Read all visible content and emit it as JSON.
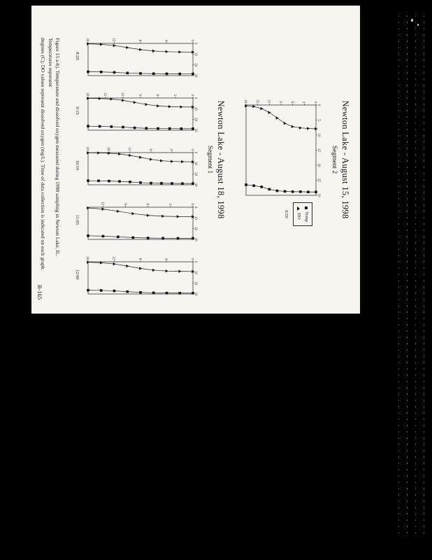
{
  "background": {
    "color": "#000000",
    "artifact_color": "#d8d8d8"
  },
  "page": {
    "sections": [
      {
        "title": "Newton Lake - August 15, 1998",
        "segment": "Segment 2"
      },
      {
        "title": "Newton Lake - August 18, 1998",
        "segment": "Segment 1"
      }
    ],
    "caption_lines": [
      "Figure 15 a-b).  Temperature and dissolved oxygen measured during 1998 sampling in Newton Lake, IL.  Temperatures represent",
      "degrees (C); DO values represent dissolved oxygen (mg/L).  Time of data collection is indicated on each graph."
    ],
    "page_number": "B-165"
  },
  "chart_data": [
    {
      "type": "scatter",
      "orientation": "depth-profile-vertical",
      "time": "6:50",
      "legend": [
        "Temp",
        "DO"
      ],
      "legend_position": "right",
      "value_range": [
        0,
        30
      ],
      "depth_range": [
        0,
        18
      ],
      "value_ticks": [
        0,
        5,
        10,
        15,
        20,
        25,
        30
      ],
      "depth_ticks": [
        0,
        3,
        6,
        9,
        12,
        15,
        18
      ],
      "depth_ft": [
        0,
        2,
        4,
        6,
        8,
        10,
        12,
        14,
        16,
        18
      ],
      "series": [
        {
          "name": "Temp",
          "marker": "square",
          "values": [
            28.9,
            28.9,
            28.8,
            28.8,
            28.7,
            28.5,
            28.0,
            27.2,
            26.8,
            26.5
          ]
        },
        {
          "name": "DO",
          "marker": "triangle",
          "values": [
            7.9,
            7.8,
            7.6,
            7.2,
            6.1,
            4.3,
            2.5,
            1.2,
            0.5,
            0.3
          ]
        }
      ]
    },
    {
      "type": "scatter",
      "orientation": "depth-profile-vertical",
      "time": "8:20",
      "value_range": [
        0,
        30
      ],
      "depth_range": [
        0,
        16
      ],
      "value_ticks": [
        0,
        10,
        20,
        30
      ],
      "depth_ticks": [
        0,
        4,
        8,
        12,
        16
      ],
      "depth_ft": [
        0,
        2,
        4,
        6,
        8,
        10,
        12,
        14,
        16
      ],
      "series": [
        {
          "name": "Temp",
          "marker": "square",
          "values": [
            28.4,
            28.4,
            28.3,
            28.2,
            28.0,
            27.6,
            27.0,
            26.6,
            26.4
          ]
        },
        {
          "name": "DO",
          "marker": "triangle",
          "values": [
            8.1,
            8.0,
            7.7,
            7.1,
            5.8,
            3.9,
            2.0,
            0.9,
            0.4
          ]
        }
      ]
    },
    {
      "type": "scatter",
      "orientation": "depth-profile-vertical",
      "time": "9:15",
      "value_range": [
        0,
        30
      ],
      "depth_range": [
        0,
        18
      ],
      "value_ticks": [
        0,
        10,
        20,
        30
      ],
      "depth_ticks": [
        0,
        3,
        6,
        9,
        12,
        15,
        18
      ],
      "depth_ft": [
        0,
        2,
        4,
        6,
        8,
        10,
        12,
        14,
        16,
        18
      ],
      "series": [
        {
          "name": "Temp",
          "marker": "square",
          "values": [
            28.6,
            28.6,
            28.5,
            28.4,
            28.2,
            27.8,
            27.1,
            26.7,
            26.4,
            26.2
          ]
        },
        {
          "name": "DO",
          "marker": "triangle",
          "values": [
            8.4,
            8.3,
            8.0,
            7.4,
            6.0,
            4.1,
            2.2,
            1.0,
            0.5,
            0.3
          ]
        }
      ]
    },
    {
      "type": "scatter",
      "orientation": "depth-profile-vertical",
      "time": "10:10",
      "value_range": [
        0,
        30
      ],
      "depth_range": [
        0,
        20
      ],
      "value_ticks": [
        0,
        10,
        20,
        30
      ],
      "depth_ticks": [
        0,
        4,
        8,
        12,
        16,
        20
      ],
      "depth_ft": [
        0,
        2,
        4,
        6,
        8,
        10,
        12,
        14,
        16,
        18,
        20
      ],
      "series": [
        {
          "name": "Temp",
          "marker": "square",
          "values": [
            28.8,
            28.8,
            28.7,
            28.6,
            28.4,
            28.0,
            27.3,
            26.8,
            26.5,
            26.3,
            26.2
          ]
        },
        {
          "name": "DO",
          "marker": "triangle",
          "values": [
            8.6,
            8.5,
            8.2,
            7.6,
            6.3,
            4.4,
            2.6,
            1.3,
            0.6,
            0.3,
            0.2
          ]
        }
      ]
    },
    {
      "type": "scatter",
      "orientation": "depth-profile-vertical",
      "time": "11:05",
      "value_range": [
        0,
        30
      ],
      "depth_range": [
        0,
        14
      ],
      "value_ticks": [
        0,
        10,
        20,
        30
      ],
      "depth_ticks": [
        0,
        3,
        6,
        9,
        12
      ],
      "depth_ft": [
        0,
        2,
        4,
        6,
        8,
        10,
        12,
        14
      ],
      "series": [
        {
          "name": "Temp",
          "marker": "square",
          "values": [
            29.0,
            29.0,
            28.9,
            28.7,
            28.3,
            27.6,
            27.0,
            26.6
          ]
        },
        {
          "name": "DO",
          "marker": "triangle",
          "values": [
            8.8,
            8.7,
            8.4,
            7.6,
            6.0,
            3.8,
            1.8,
            0.7
          ]
        }
      ]
    },
    {
      "type": "scatter",
      "orientation": "depth-profile-vertical",
      "time": "12:00",
      "value_range": [
        0,
        30
      ],
      "depth_range": [
        0,
        16
      ],
      "value_ticks": [
        0,
        10,
        20,
        30
      ],
      "depth_ticks": [
        0,
        4,
        8,
        12,
        16
      ],
      "depth_ft": [
        0,
        2,
        4,
        6,
        8,
        10,
        12,
        14,
        16
      ],
      "series": [
        {
          "name": "Temp",
          "marker": "square",
          "values": [
            29.2,
            29.2,
            29.1,
            28.9,
            28.5,
            27.8,
            27.1,
            26.7,
            26.5
          ]
        },
        {
          "name": "DO",
          "marker": "triangle",
          "values": [
            9.0,
            8.9,
            8.6,
            7.8,
            6.2,
            4.0,
            2.0,
            0.9,
            0.4
          ]
        }
      ]
    }
  ]
}
